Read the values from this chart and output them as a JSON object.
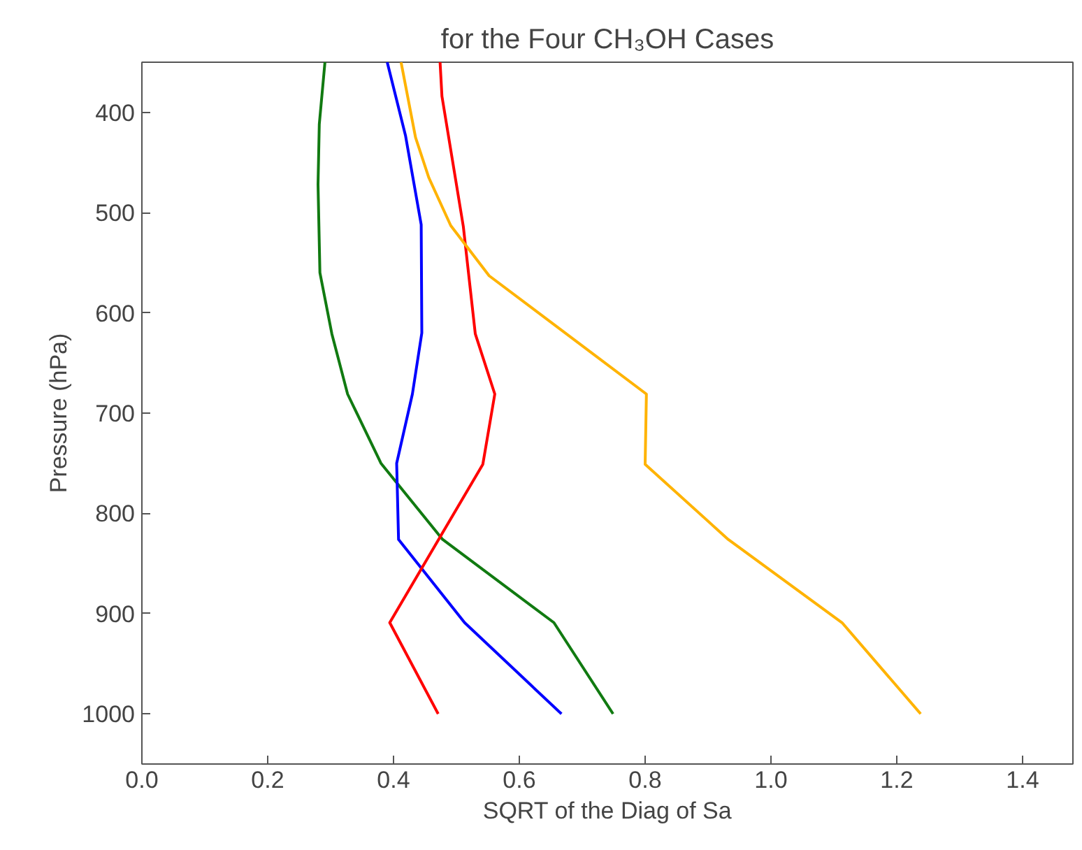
{
  "chart_data": {
    "type": "line",
    "title": "for the Four CH₃OH Cases",
    "xlabel": "SQRT of the Diag of Sa",
    "ylabel": "Pressure (hPa)",
    "xlim": [
      0,
      1.48
    ],
    "xticks": [
      {
        "value": 0,
        "label": "0.0"
      },
      0.2,
      0.4,
      0.6,
      0.8,
      {
        "value": 1,
        "label": "1.0"
      },
      1.2,
      1.4
    ],
    "ylim": [
      1050,
      350
    ],
    "yticks": [
      400,
      500,
      600,
      700,
      800,
      900,
      1000
    ],
    "grid": false,
    "line_style": "solid",
    "marker": "none",
    "series": [
      {
        "color": "#117a11",
        "x": [
          0.291,
          0.282,
          0.28,
          0.283,
          0.302,
          0.327,
          0.38,
          0.478,
          0.655,
          0.749
        ],
        "values": [
          350,
          412,
          472,
          560,
          621,
          681,
          750,
          826,
          909,
          1000
        ]
      },
      {
        "color": "#0000ff",
        "x": [
          0.39,
          0.419,
          0.444,
          0.445,
          0.43,
          0.405,
          0.408,
          0.513,
          0.667
        ],
        "values": [
          350,
          423,
          512,
          620,
          681,
          750,
          826,
          909,
          1000
        ]
      },
      {
        "color": "#ff0000",
        "x": [
          0.474,
          0.477,
          0.511,
          0.53,
          0.561,
          0.542,
          0.394,
          0.471
        ],
        "values": [
          350,
          384,
          514,
          621,
          681,
          751,
          909,
          1000
        ]
      },
      {
        "color": "#ffb300",
        "x": [
          0.412,
          0.435,
          0.456,
          0.491,
          0.552,
          0.802,
          0.8,
          0.932,
          1.113,
          1.238
        ],
        "values": [
          350,
          425,
          465,
          513,
          563,
          681,
          751,
          826,
          909,
          1000
        ]
      }
    ]
  }
}
